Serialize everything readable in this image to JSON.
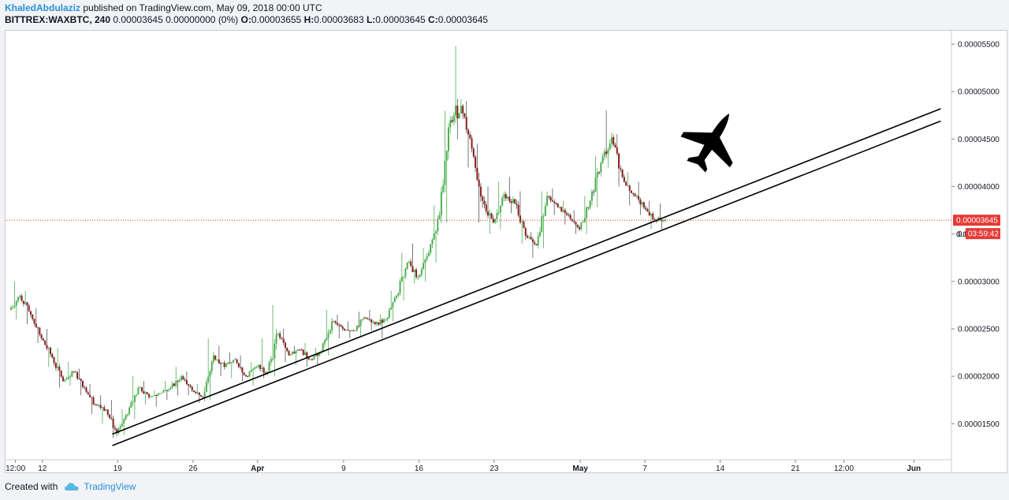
{
  "header": {
    "author": "KhaledAbdulaziz",
    "published_text": " published on TradingView.com, May 09, 2018 00:00 UTC",
    "symbol": "BITTREX:WAXBTC, 240",
    "change": " 0.00003645 0.00000000 (0%) ",
    "o_label": "O:",
    "o_value": "0.00003655 ",
    "h_label": "H:",
    "h_value": "0.00003683 ",
    "l_label": "L:",
    "l_value": "0.00003645 ",
    "c_label": "C:",
    "c_value": "0.00003645"
  },
  "footer": {
    "created_with": "Created with",
    "brand": "TradingView",
    "brand_icon": "tradingview-cloud-icon"
  },
  "colors": {
    "up": "#4caf50",
    "down": "#8b1a1a",
    "price_line": "#e53935",
    "trendline": "#000000",
    "axis_text": "#131722"
  },
  "chart_data": {
    "type": "candlestick",
    "ylim": [
      1.12e-05,
      5.65e-05
    ],
    "y_ticks": [
      "0.00001500",
      "0.00002000",
      "0.00002500",
      "0.00003000",
      "0.00003500",
      "0.00004000",
      "0.00004500",
      "0.00005000",
      "0.00005500"
    ],
    "y_tick_values": [
      1.5e-05,
      2e-05,
      2.5e-05,
      3e-05,
      3.5e-05,
      4e-05,
      4.5e-05,
      5e-05,
      5.5e-05
    ],
    "x_ticks": [
      {
        "label": "12:00",
        "date": "2018-03-09 12:00"
      },
      {
        "label": "12",
        "date": "2018-03-12"
      },
      {
        "label": "19",
        "date": "2018-03-19"
      },
      {
        "label": "26",
        "date": "2018-03-26"
      },
      {
        "label": "Apr",
        "date": "2018-04-01",
        "bold": true
      },
      {
        "label": "9",
        "date": "2018-04-09"
      },
      {
        "label": "16",
        "date": "2018-04-16"
      },
      {
        "label": "23",
        "date": "2018-04-23"
      },
      {
        "label": "May",
        "date": "2018-05-01",
        "bold": true
      },
      {
        "label": "7",
        "date": "2018-05-07"
      },
      {
        "label": "14",
        "date": "2018-05-14"
      },
      {
        "label": "21",
        "date": "2018-05-21"
      },
      {
        "label": "12:00",
        "date": "2018-05-25 12:00"
      },
      {
        "label": "Jun",
        "date": "2018-06-01",
        "bold": true
      }
    ],
    "x_range": [
      "2018-03-08 12:00",
      "2018-06-04 12:00"
    ],
    "last_price": 3.645e-05,
    "last_price_label": "0.00003645",
    "countdown": "03:59:42",
    "price_under_countdown": "0.0",
    "trendlines": [
      {
        "from": {
          "date": "2018-03-18 12:00",
          "price": 1.39e-05
        },
        "to": {
          "date": "2018-06-03 12:00",
          "price": 4.82e-05
        }
      },
      {
        "from": {
          "date": "2018-03-18 12:00",
          "price": 1.27e-05
        },
        "to": {
          "date": "2018-06-03 12:00",
          "price": 4.69e-05
        }
      }
    ],
    "annotation_icon": "fighter-jet-icon",
    "series": [
      {
        "date": "2018-03-09",
        "o": 2.7e-05,
        "h": 3e-05,
        "l": 2.6e-05,
        "c": 2.85e-05
      },
      {
        "date": "2018-03-10",
        "o": 2.85e-05,
        "h": 2.9e-05,
        "l": 2.55e-05,
        "c": 2.65e-05
      },
      {
        "date": "2018-03-11",
        "o": 2.65e-05,
        "h": 2.72e-05,
        "l": 2.35e-05,
        "c": 2.4e-05
      },
      {
        "date": "2018-03-12",
        "o": 2.4e-05,
        "h": 2.5e-05,
        "l": 2.1e-05,
        "c": 2.2e-05
      },
      {
        "date": "2018-03-13",
        "o": 2.2e-05,
        "h": 2.3e-05,
        "l": 1.88e-05,
        "c": 1.95e-05
      },
      {
        "date": "2018-03-14",
        "o": 1.95e-05,
        "h": 2.15e-05,
        "l": 1.9e-05,
        "c": 2.05e-05
      },
      {
        "date": "2018-03-15",
        "o": 2.05e-05,
        "h": 2.08e-05,
        "l": 1.8e-05,
        "c": 1.88e-05
      },
      {
        "date": "2018-03-16",
        "o": 1.88e-05,
        "h": 1.92e-05,
        "l": 1.6e-05,
        "c": 1.7e-05
      },
      {
        "date": "2018-03-17",
        "o": 1.7e-05,
        "h": 1.8e-05,
        "l": 1.5e-05,
        "c": 1.65e-05
      },
      {
        "date": "2018-03-18",
        "o": 1.65e-05,
        "h": 1.75e-05,
        "l": 1.35e-05,
        "c": 1.4e-05
      },
      {
        "date": "2018-03-19",
        "o": 1.4e-05,
        "h": 1.65e-05,
        "l": 1.38e-05,
        "c": 1.6e-05
      },
      {
        "date": "2018-03-20",
        "o": 1.6e-05,
        "h": 2e-05,
        "l": 1.55e-05,
        "c": 1.88e-05
      },
      {
        "date": "2018-03-21",
        "o": 1.88e-05,
        "h": 1.95e-05,
        "l": 1.7e-05,
        "c": 1.78e-05
      },
      {
        "date": "2018-03-22",
        "o": 1.78e-05,
        "h": 1.85e-05,
        "l": 1.68e-05,
        "c": 1.82e-05
      },
      {
        "date": "2018-03-23",
        "o": 1.82e-05,
        "h": 1.95e-05,
        "l": 1.75e-05,
        "c": 1.88e-05
      },
      {
        "date": "2018-03-24",
        "o": 1.88e-05,
        "h": 2.1e-05,
        "l": 1.8e-05,
        "c": 2e-05
      },
      {
        "date": "2018-03-25",
        "o": 2e-05,
        "h": 2.05e-05,
        "l": 1.8e-05,
        "c": 1.85e-05
      },
      {
        "date": "2018-03-26",
        "o": 1.85e-05,
        "h": 1.92e-05,
        "l": 1.72e-05,
        "c": 1.78e-05
      },
      {
        "date": "2018-03-27",
        "o": 1.78e-05,
        "h": 2.4e-05,
        "l": 1.75e-05,
        "c": 2.22e-05
      },
      {
        "date": "2018-03-28",
        "o": 2.22e-05,
        "h": 2.32e-05,
        "l": 2e-05,
        "c": 2.1e-05
      },
      {
        "date": "2018-03-29",
        "o": 2.1e-05,
        "h": 2.25e-05,
        "l": 1.98e-05,
        "c": 2.18e-05
      },
      {
        "date": "2018-03-30",
        "o": 2.18e-05,
        "h": 2.22e-05,
        "l": 1.95e-05,
        "c": 2e-05
      },
      {
        "date": "2018-03-31",
        "o": 2e-05,
        "h": 2.15e-05,
        "l": 1.9e-05,
        "c": 2.1e-05
      },
      {
        "date": "2018-04-01",
        "o": 2.1e-05,
        "h": 2.4e-05,
        "l": 1.98e-05,
        "c": 2.05e-05
      },
      {
        "date": "2018-04-02",
        "o": 2.05e-05,
        "h": 2.75e-05,
        "l": 2e-05,
        "c": 2.45e-05
      },
      {
        "date": "2018-04-03",
        "o": 2.45e-05,
        "h": 2.5e-05,
        "l": 2.15e-05,
        "c": 2.22e-05
      },
      {
        "date": "2018-04-04",
        "o": 2.22e-05,
        "h": 2.32e-05,
        "l": 2.12e-05,
        "c": 2.28e-05
      },
      {
        "date": "2018-04-05",
        "o": 2.28e-05,
        "h": 2.35e-05,
        "l": 2.1e-05,
        "c": 2.18e-05
      },
      {
        "date": "2018-04-06",
        "o": 2.18e-05,
        "h": 2.3e-05,
        "l": 2.12e-05,
        "c": 2.26e-05
      },
      {
        "date": "2018-04-07",
        "o": 2.26e-05,
        "h": 2.7e-05,
        "l": 2.22e-05,
        "c": 2.58e-05
      },
      {
        "date": "2018-04-08",
        "o": 2.58e-05,
        "h": 2.65e-05,
        "l": 2.4e-05,
        "c": 2.5e-05
      },
      {
        "date": "2018-04-09",
        "o": 2.5e-05,
        "h": 2.58e-05,
        "l": 2.4e-05,
        "c": 2.48e-05
      },
      {
        "date": "2018-04-10",
        "o": 2.48e-05,
        "h": 2.68e-05,
        "l": 2.42e-05,
        "c": 2.62e-05
      },
      {
        "date": "2018-04-11",
        "o": 2.62e-05,
        "h": 2.7e-05,
        "l": 2.48e-05,
        "c": 2.55e-05
      },
      {
        "date": "2018-04-12",
        "o": 2.55e-05,
        "h": 2.65e-05,
        "l": 2.4e-05,
        "c": 2.6e-05
      },
      {
        "date": "2018-04-13",
        "o": 2.6e-05,
        "h": 2.9e-05,
        "l": 2.58e-05,
        "c": 2.85e-05
      },
      {
        "date": "2018-04-14",
        "o": 2.85e-05,
        "h": 3.3e-05,
        "l": 2.8e-05,
        "c": 3.2e-05
      },
      {
        "date": "2018-04-15",
        "o": 3.2e-05,
        "h": 3.4e-05,
        "l": 2.98e-05,
        "c": 3.05e-05
      },
      {
        "date": "2018-04-16",
        "o": 3.05e-05,
        "h": 3.35e-05,
        "l": 3e-05,
        "c": 3.3e-05
      },
      {
        "date": "2018-04-17",
        "o": 3.3e-05,
        "h": 3.8e-05,
        "l": 3.2e-05,
        "c": 3.7e-05
      },
      {
        "date": "2018-04-18",
        "o": 3.7e-05,
        "h": 4.8e-05,
        "l": 3.62e-05,
        "c": 4.7e-05
      },
      {
        "date": "2018-04-19",
        "o": 4.7e-05,
        "h": 5.48e-05,
        "l": 4.5e-05,
        "c": 4.85e-05
      },
      {
        "date": "2018-04-20",
        "o": 4.85e-05,
        "h": 4.9e-05,
        "l": 4.2e-05,
        "c": 4.4e-05
      },
      {
        "date": "2018-04-21",
        "o": 4.4e-05,
        "h": 4.45e-05,
        "l": 3.62e-05,
        "c": 3.85e-05
      },
      {
        "date": "2018-04-22",
        "o": 3.85e-05,
        "h": 4e-05,
        "l": 3.5e-05,
        "c": 3.62e-05
      },
      {
        "date": "2018-04-23",
        "o": 3.62e-05,
        "h": 4.05e-05,
        "l": 3.55e-05,
        "c": 3.92e-05
      },
      {
        "date": "2018-04-24",
        "o": 3.92e-05,
        "h": 4.1e-05,
        "l": 3.72e-05,
        "c": 3.82e-05
      },
      {
        "date": "2018-04-25",
        "o": 3.82e-05,
        "h": 3.95e-05,
        "l": 3.4e-05,
        "c": 3.48e-05
      },
      {
        "date": "2018-04-26",
        "o": 3.48e-05,
        "h": 3.52e-05,
        "l": 3.25e-05,
        "c": 3.38e-05
      },
      {
        "date": "2018-04-27",
        "o": 3.38e-05,
        "h": 3.95e-05,
        "l": 3.35e-05,
        "c": 3.9e-05
      },
      {
        "date": "2018-04-28",
        "o": 3.9e-05,
        "h": 3.98e-05,
        "l": 3.7e-05,
        "c": 3.78e-05
      },
      {
        "date": "2018-04-29",
        "o": 3.78e-05,
        "h": 3.85e-05,
        "l": 3.6e-05,
        "c": 3.7e-05
      },
      {
        "date": "2018-04-30",
        "o": 3.7e-05,
        "h": 3.75e-05,
        "l": 3.5e-05,
        "c": 3.55e-05
      },
      {
        "date": "2018-05-01",
        "o": 3.55e-05,
        "h": 3.9e-05,
        "l": 3.5e-05,
        "c": 3.85e-05
      },
      {
        "date": "2018-05-02",
        "o": 3.85e-05,
        "h": 4.32e-05,
        "l": 3.78e-05,
        "c": 4.25e-05
      },
      {
        "date": "2018-05-03",
        "o": 4.25e-05,
        "h": 4.8e-05,
        "l": 4.2e-05,
        "c": 4.52e-05
      },
      {
        "date": "2018-05-04",
        "o": 4.52e-05,
        "h": 4.55e-05,
        "l": 4e-05,
        "c": 4.1e-05
      },
      {
        "date": "2018-05-05",
        "o": 4.1e-05,
        "h": 4.15e-05,
        "l": 3.8e-05,
        "c": 3.92e-05
      },
      {
        "date": "2018-05-06",
        "o": 3.92e-05,
        "h": 4.05e-05,
        "l": 3.7e-05,
        "c": 3.78e-05
      },
      {
        "date": "2018-05-07",
        "o": 3.78e-05,
        "h": 3.85e-05,
        "l": 3.55e-05,
        "c": 3.65e-05
      },
      {
        "date": "2018-05-08",
        "o": 3.65e-05,
        "h": 3.82e-05,
        "l": 3.55e-05,
        "c": 3.65e-05
      }
    ]
  }
}
